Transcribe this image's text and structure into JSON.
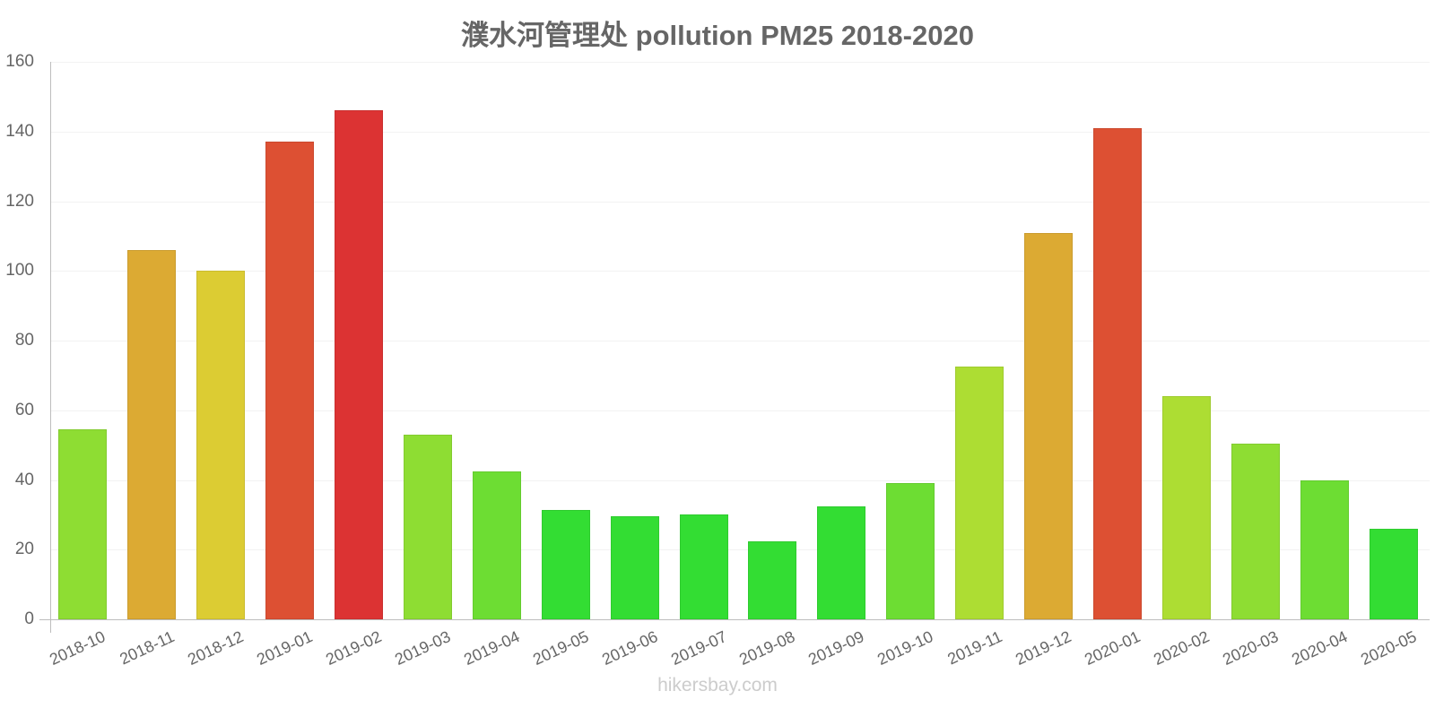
{
  "title": "濮水河管理处 pollution PM25 2018-2020",
  "watermark": "hikersbay.com",
  "y_axis": {
    "ticks": [
      "0",
      "20",
      "40",
      "60",
      "80",
      "100",
      "120",
      "140",
      "160"
    ]
  },
  "colors": {
    "green": "#33dd33",
    "green_light": "#6ddd33",
    "lime": "#8edd33",
    "yellow_green": "#addd33",
    "yellow": "#dccc33",
    "orange": "#dcaa33",
    "red_orange": "#dd5033",
    "red": "#dc3333",
    "text": "#666666",
    "axis": "#bdbdbd"
  },
  "bars": [
    {
      "label": "2018-10",
      "value": 54.5,
      "color": "#8edd33"
    },
    {
      "label": "2018-11",
      "value": 106,
      "color": "#dcaa33"
    },
    {
      "label": "2018-12",
      "value": 100,
      "color": "#dccc33"
    },
    {
      "label": "2019-01",
      "value": 137,
      "color": "#dd5033"
    },
    {
      "label": "2019-02",
      "value": 146,
      "color": "#dc3333"
    },
    {
      "label": "2019-03",
      "value": 53,
      "color": "#8edd33"
    },
    {
      "label": "2019-04",
      "value": 42.5,
      "color": "#6ddd33"
    },
    {
      "label": "2019-05",
      "value": 31.5,
      "color": "#33dd33"
    },
    {
      "label": "2019-06",
      "value": 29.5,
      "color": "#33dd33"
    },
    {
      "label": "2019-07",
      "value": 30,
      "color": "#33dd33"
    },
    {
      "label": "2019-08",
      "value": 22.5,
      "color": "#33dd33"
    },
    {
      "label": "2019-09",
      "value": 32.5,
      "color": "#33dd33"
    },
    {
      "label": "2019-10",
      "value": 39,
      "color": "#6ddd33"
    },
    {
      "label": "2019-11",
      "value": 72.5,
      "color": "#addd33"
    },
    {
      "label": "2019-12",
      "value": 111,
      "color": "#dcaa33"
    },
    {
      "label": "2020-01",
      "value": 141,
      "color": "#dd5033"
    },
    {
      "label": "2020-02",
      "value": 64,
      "color": "#addd33"
    },
    {
      "label": "2020-03",
      "value": 50.5,
      "color": "#8edd33"
    },
    {
      "label": "2020-04",
      "value": 40,
      "color": "#6ddd33"
    },
    {
      "label": "2020-05",
      "value": 26,
      "color": "#33dd33"
    }
  ],
  "chart_data": {
    "type": "bar",
    "title": "濮水河管理处 pollution PM25 2018-2020",
    "xlabel": "",
    "ylabel": "",
    "ylim": [
      0,
      160
    ],
    "grid": true,
    "legend": null,
    "categories": [
      "2018-10",
      "2018-11",
      "2018-12",
      "2019-01",
      "2019-02",
      "2019-03",
      "2019-04",
      "2019-05",
      "2019-06",
      "2019-07",
      "2019-08",
      "2019-09",
      "2019-10",
      "2019-11",
      "2019-12",
      "2020-01",
      "2020-02",
      "2020-03",
      "2020-04",
      "2020-05"
    ],
    "values": [
      54.5,
      106,
      100,
      137,
      146,
      53,
      42.5,
      31.5,
      29.5,
      30,
      22.5,
      32.5,
      39,
      72.5,
      111,
      141,
      64,
      50.5,
      40,
      26
    ],
    "yticks": [
      0,
      20,
      40,
      60,
      80,
      100,
      120,
      140,
      160
    ],
    "annotations": [
      "hikersbay.com"
    ]
  }
}
